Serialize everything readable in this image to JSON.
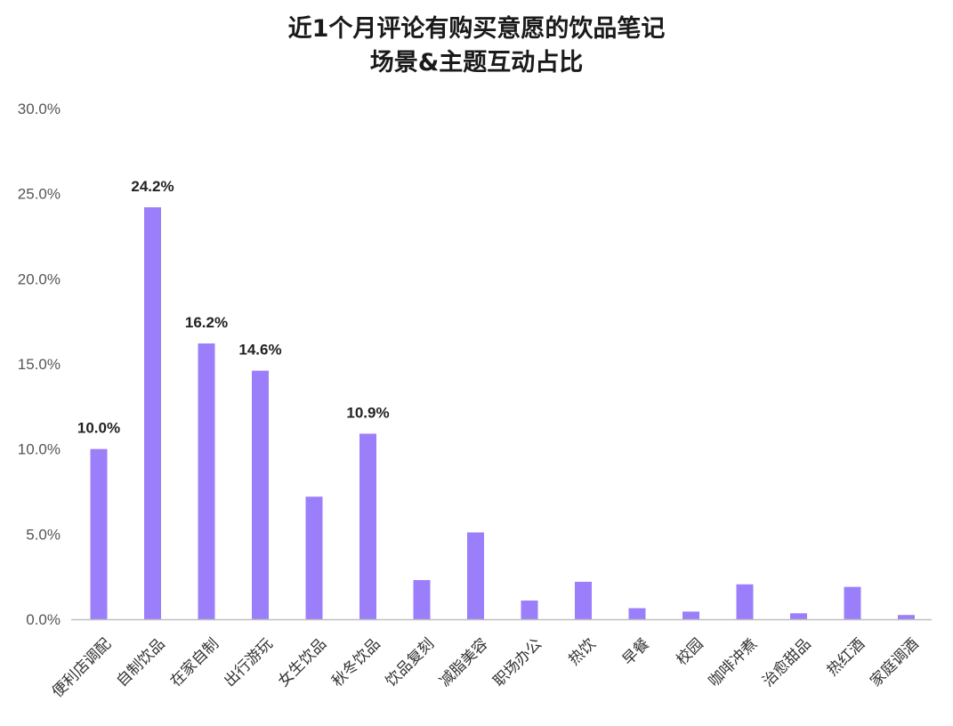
{
  "chart_data": {
    "type": "bar",
    "title_lines": [
      "近1个月评论有购买意愿的饮品笔记",
      "场景&主题互动占比"
    ],
    "xlabel": "",
    "ylabel": "",
    "ylim": [
      0,
      30
    ],
    "yticks": [
      "0.0%",
      "5.0%",
      "10.0%",
      "15.0%",
      "20.0%",
      "25.0%",
      "30.0%"
    ],
    "grid": false,
    "bar_color": "#9b7ffa",
    "categories": [
      "便利店调配",
      "自制饮品",
      "在家自制",
      "出行游玩",
      "女生饮品",
      "秋冬饮品",
      "饮品复刻",
      "减脂美容",
      "职场办公",
      "热饮",
      "早餐",
      "校园",
      "咖啡冲煮",
      "治愈甜品",
      "热红酒",
      "家庭调酒"
    ],
    "values": [
      10.0,
      24.2,
      16.2,
      14.6,
      7.2,
      10.9,
      2.3,
      5.1,
      1.1,
      2.2,
      0.65,
      0.45,
      2.05,
      0.35,
      1.9,
      0.25
    ],
    "data_labels": [
      "10.0%",
      "24.2%",
      "16.2%",
      "14.6%",
      "",
      "10.9%",
      "",
      "",
      "",
      "",
      "",
      "",
      "",
      "",
      "",
      ""
    ]
  }
}
